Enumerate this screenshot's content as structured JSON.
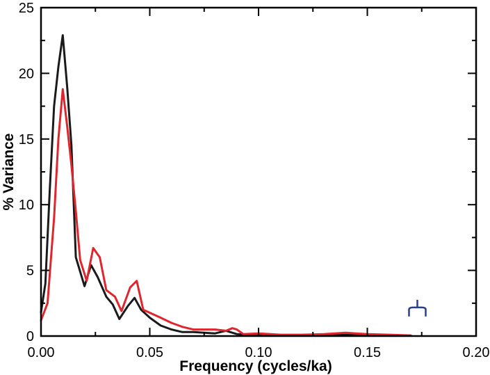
{
  "chart_data": {
    "type": "line",
    "title": "",
    "xlabel": "Frequency (cycles/ka)",
    "ylabel": "% Variance",
    "xlim": [
      0,
      0.2
    ],
    "ylim": [
      0,
      25
    ],
    "x_ticks": [
      "0.00",
      "0.05",
      "0.10",
      "0.15",
      "0.20"
    ],
    "y_ticks": [
      "0",
      "5",
      "10",
      "15",
      "20",
      "25"
    ],
    "grid": false,
    "legend": "none",
    "series": [
      {
        "color": "#1a1a1a",
        "x": [
          0.0,
          0.002,
          0.004,
          0.006,
          0.008,
          0.01,
          0.012,
          0.014,
          0.016,
          0.02,
          0.023,
          0.026,
          0.03,
          0.033,
          0.036,
          0.04,
          0.043,
          0.046,
          0.05,
          0.055,
          0.06,
          0.065,
          0.07,
          0.075,
          0.08,
          0.085,
          0.09,
          0.095,
          0.1,
          0.11,
          0.12,
          0.13,
          0.14,
          0.15,
          0.16,
          0.17
        ],
        "y": [
          1.8,
          4.0,
          11.0,
          17.5,
          20.5,
          22.9,
          19.0,
          14.5,
          6.0,
          3.8,
          5.4,
          4.5,
          3.0,
          2.4,
          1.3,
          2.3,
          2.9,
          2.0,
          1.4,
          0.8,
          0.5,
          0.3,
          0.3,
          0.25,
          0.2,
          0.4,
          0.15,
          0.1,
          0.1,
          0.05,
          0.05,
          0.05,
          0.1,
          0.05,
          0.03,
          0.03
        ]
      },
      {
        "color": "#e0252c",
        "x": [
          0.0,
          0.003,
          0.006,
          0.008,
          0.01,
          0.012,
          0.014,
          0.016,
          0.018,
          0.021,
          0.024,
          0.027,
          0.03,
          0.034,
          0.037,
          0.041,
          0.044,
          0.047,
          0.055,
          0.06,
          0.065,
          0.07,
          0.08,
          0.085,
          0.088,
          0.09,
          0.093,
          0.1,
          0.11,
          0.12,
          0.13,
          0.14,
          0.15,
          0.16,
          0.17
        ],
        "y": [
          1.2,
          2.5,
          9.0,
          15.0,
          18.8,
          16.0,
          13.0,
          9.5,
          5.8,
          4.2,
          6.7,
          6.0,
          3.5,
          3.0,
          1.9,
          3.7,
          4.2,
          2.0,
          1.4,
          1.0,
          0.7,
          0.5,
          0.5,
          0.4,
          0.6,
          0.5,
          0.15,
          0.2,
          0.1,
          0.1,
          0.15,
          0.25,
          0.15,
          0.1,
          0.05
        ]
      }
    ],
    "annotation": {
      "symbol": "bandwidth bracket",
      "x": 0.173,
      "y": 1.7,
      "color": "#27408b"
    }
  }
}
